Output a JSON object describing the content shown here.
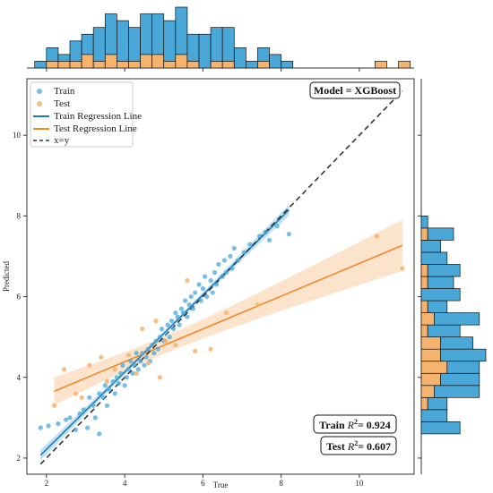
{
  "chart_data": {
    "type": "scatter",
    "xlabel": "True",
    "ylabel": "Predicted",
    "xlim": [
      1.5,
      11.4
    ],
    "ylim": [
      1.6,
      11.4
    ],
    "xticks": [
      "2",
      "4",
      "6",
      "8",
      "10"
    ],
    "yticks": [
      "2",
      "4",
      "6",
      "8",
      "10"
    ],
    "grid": false,
    "legend_position": "top-left",
    "model_label": "Model = XGBoost",
    "train_r2_label": "Train",
    "train_r2_value": "= 0.924",
    "test_r2_label": "Test",
    "test_r2_value": "= 0.607",
    "r2_symbol": "R",
    "r2_sup": "2",
    "legend": {
      "train": "Train",
      "test": "Test",
      "train_line": "Train Regression Line",
      "test_line": "Test Regression Line",
      "identity": "x=y"
    },
    "colors": {
      "train": "#1f7ab8",
      "train_fill": "#4aa8d8",
      "test": "#f0882a",
      "test_fill": "#f6b36e",
      "identity": "#333333"
    },
    "series": [
      {
        "name": "Train",
        "points": [
          [
            1.85,
            2.75
          ],
          [
            2.05,
            2.8
          ],
          [
            2.3,
            2.85
          ],
          [
            2.5,
            2.95
          ],
          [
            2.6,
            3.0
          ],
          [
            2.75,
            2.7
          ],
          [
            2.85,
            3.1
          ],
          [
            2.95,
            3.2
          ],
          [
            3.05,
            2.75
          ],
          [
            3.1,
            3.5
          ],
          [
            3.2,
            3.3
          ],
          [
            3.25,
            3.0
          ],
          [
            3.35,
            3.6
          ],
          [
            3.35,
            2.6
          ],
          [
            3.45,
            3.5
          ],
          [
            3.5,
            3.8
          ],
          [
            3.55,
            3.3
          ],
          [
            3.6,
            3.7
          ],
          [
            3.7,
            3.9
          ],
          [
            3.75,
            3.6
          ],
          [
            3.8,
            4.0
          ],
          [
            3.85,
            3.85
          ],
          [
            3.9,
            4.1
          ],
          [
            3.95,
            4.3
          ],
          [
            4.0,
            3.8
          ],
          [
            4.05,
            4.0
          ],
          [
            4.1,
            4.2
          ],
          [
            4.15,
            4.4
          ],
          [
            4.2,
            4.1
          ],
          [
            4.25,
            4.3
          ],
          [
            4.3,
            4.6
          ],
          [
            4.35,
            4.2
          ],
          [
            4.4,
            4.4
          ],
          [
            4.45,
            4.6
          ],
          [
            4.5,
            4.3
          ],
          [
            4.55,
            4.5
          ],
          [
            4.6,
            4.7
          ],
          [
            4.65,
            4.4
          ],
          [
            4.7,
            4.8
          ],
          [
            4.75,
            4.6
          ],
          [
            4.8,
            4.9
          ],
          [
            4.85,
            4.7
          ],
          [
            4.9,
            5.0
          ],
          [
            4.95,
            5.2
          ],
          [
            5.0,
            4.9
          ],
          [
            5.05,
            5.1
          ],
          [
            5.1,
            5.3
          ],
          [
            5.15,
            5.0
          ],
          [
            5.2,
            5.4
          ],
          [
            5.25,
            5.2
          ],
          [
            5.3,
            5.6
          ],
          [
            5.35,
            5.5
          ],
          [
            5.4,
            5.3
          ],
          [
            5.45,
            5.7
          ],
          [
            5.5,
            5.6
          ],
          [
            5.55,
            5.9
          ],
          [
            5.6,
            5.5
          ],
          [
            5.65,
            5.8
          ],
          [
            5.7,
            6.0
          ],
          [
            5.75,
            5.7
          ],
          [
            5.8,
            6.1
          ],
          [
            5.9,
            6.3
          ],
          [
            5.95,
            5.9
          ],
          [
            6.0,
            6.2
          ],
          [
            6.05,
            6.5
          ],
          [
            6.1,
            6.0
          ],
          [
            6.2,
            6.4
          ],
          [
            6.25,
            6.1
          ],
          [
            6.3,
            6.6
          ],
          [
            6.35,
            6.3
          ],
          [
            6.4,
            6.8
          ],
          [
            6.5,
            6.5
          ],
          [
            6.55,
            6.9
          ],
          [
            6.6,
            6.6
          ],
          [
            6.7,
            7.0
          ],
          [
            6.75,
            6.7
          ],
          [
            6.8,
            7.2
          ],
          [
            6.9,
            6.9
          ],
          [
            7.05,
            7.1
          ],
          [
            7.2,
            7.3
          ],
          [
            7.45,
            7.5
          ],
          [
            7.6,
            7.6
          ],
          [
            7.7,
            7.4
          ],
          [
            7.9,
            7.75
          ],
          [
            8.2,
            7.55
          ]
        ]
      },
      {
        "name": "Test",
        "points": [
          [
            2.2,
            3.3
          ],
          [
            2.45,
            4.2
          ],
          [
            2.75,
            3.6
          ],
          [
            2.9,
            3.5
          ],
          [
            3.1,
            4.3
          ],
          [
            3.4,
            4.5
          ],
          [
            3.55,
            3.9
          ],
          [
            3.75,
            4.2
          ],
          [
            4.1,
            4.55
          ],
          [
            4.3,
            4.1
          ],
          [
            4.45,
            5.2
          ],
          [
            4.6,
            4.35
          ],
          [
            4.8,
            5.4
          ],
          [
            4.9,
            4.0
          ],
          [
            5.05,
            4.9
          ],
          [
            5.3,
            4.8
          ],
          [
            5.6,
            6.4
          ],
          [
            5.8,
            4.65
          ],
          [
            6.2,
            4.7
          ],
          [
            6.6,
            5.6
          ],
          [
            7.4,
            5.8
          ],
          [
            10.45,
            7.5
          ],
          [
            11.1,
            6.7
          ]
        ]
      }
    ]
  }
}
